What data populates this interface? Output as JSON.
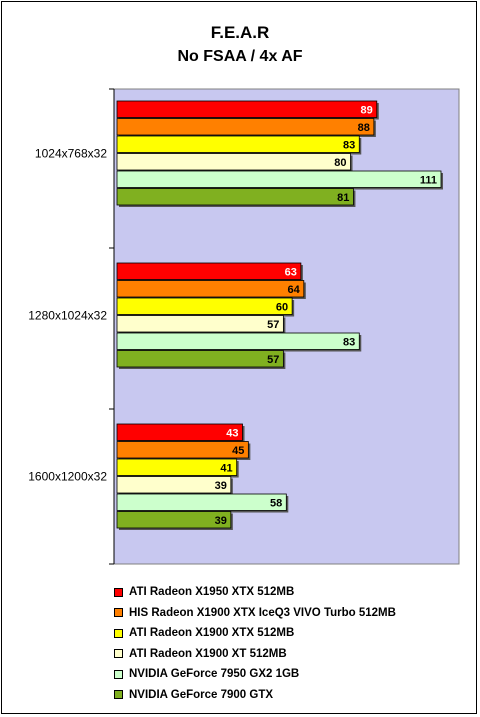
{
  "chart_data": {
    "type": "bar",
    "orientation": "horizontal",
    "title": "F.E.A.R",
    "subtitle": "No FSAA / 4x AF",
    "categories": [
      "1024x768x32",
      "1280x1024x32",
      "1600x1200x32"
    ],
    "series": [
      {
        "name": "ATI Radeon X1950 XTX 512MB",
        "color": "#ff0000",
        "values": [
          89,
          63,
          43
        ]
      },
      {
        "name": "HIS Radeon X1900 XTX IceQ3 VIVO Turbo 512MB",
        "color": "#ff8000",
        "values": [
          88,
          64,
          45
        ]
      },
      {
        "name": "ATI Radeon X1900 XTX 512MB",
        "color": "#ffff00",
        "values": [
          83,
          60,
          41
        ]
      },
      {
        "name": "ATI Radeon X1900 XT 512MB",
        "color": "#ffffcc",
        "values": [
          80,
          57,
          39
        ]
      },
      {
        "name": "NVIDIA GeForce 7950 GX2 1GB",
        "color": "#ccffcc",
        "values": [
          111,
          83,
          58
        ]
      },
      {
        "name": "NVIDIA GeForce 7900 GTX",
        "color": "#80b020",
        "values": [
          81,
          57,
          39
        ]
      }
    ],
    "xlim": [
      0,
      111
    ],
    "grid": false,
    "legend": "bottom",
    "plot_background": "#c8c8f0"
  }
}
